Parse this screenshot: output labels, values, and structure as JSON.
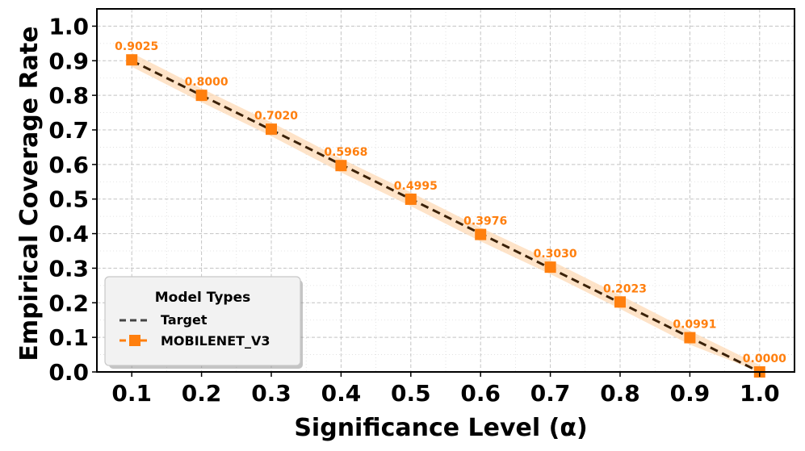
{
  "chart_data": {
    "type": "line",
    "xlabel": "Significance Level (α)",
    "ylabel": "Empirical Coverage Rate",
    "xlim": [
      0.05,
      1.05
    ],
    "ylim": [
      0.0,
      1.05
    ],
    "x_ticks": [
      "0.1",
      "0.2",
      "0.3",
      "0.4",
      "0.5",
      "0.6",
      "0.7",
      "0.8",
      "0.9",
      "1.0"
    ],
    "y_ticks": [
      "0.0",
      "0.1",
      "0.2",
      "0.3",
      "0.4",
      "0.5",
      "0.6",
      "0.7",
      "0.8",
      "0.9",
      "1.0"
    ],
    "grid": true,
    "legend": {
      "title": "Model Types",
      "placement": "lower-left",
      "entries": [
        "Target",
        "MOBILENET_V3"
      ]
    },
    "series": [
      {
        "name": "Target",
        "style": "dashed",
        "color": "#3b2108",
        "x": [
          0.1,
          0.2,
          0.3,
          0.4,
          0.5,
          0.6,
          0.7,
          0.8,
          0.9,
          1.0
        ],
        "values": [
          0.9,
          0.8,
          0.7,
          0.6,
          0.5,
          0.4,
          0.3,
          0.2,
          0.1,
          0.0
        ]
      },
      {
        "name": "MOBILENET_V3",
        "style": "dashed-square-markers",
        "color": "#ff7f0e",
        "band_color": "#fdd9b5",
        "x": [
          0.1,
          0.2,
          0.3,
          0.4,
          0.5,
          0.6,
          0.7,
          0.8,
          0.9,
          1.0
        ],
        "values": [
          0.9025,
          0.8,
          0.702,
          0.5968,
          0.4995,
          0.3976,
          0.303,
          0.2023,
          0.0991,
          0.0
        ],
        "labels": [
          "0.9025",
          "0.8000",
          "0.7020",
          "0.5968",
          "0.4995",
          "0.3976",
          "0.3030",
          "0.2023",
          "0.0991",
          "0.0000"
        ]
      }
    ]
  }
}
